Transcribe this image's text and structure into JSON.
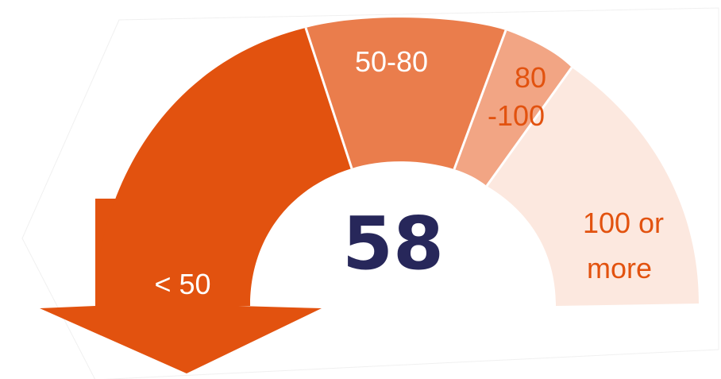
{
  "gauge": {
    "value": "58",
    "value_color": "#27275a",
    "segments": [
      {
        "id": "lt50",
        "label": "< 50",
        "color": "#e2520f",
        "label_color": "#ffffff"
      },
      {
        "id": "50-80",
        "label": "50-80",
        "color": "#ea7d4c",
        "label_color": "#ffffff"
      },
      {
        "id": "80-100",
        "label_lines": [
          "80",
          "-100"
        ],
        "color": "#f2a584",
        "label_color": "#e2520f"
      },
      {
        "id": "100plus",
        "label_lines": [
          "100 or",
          "more"
        ],
        "color": "#fce8df",
        "label_color": "#e2520f"
      }
    ],
    "arrow_color": "#e2520f"
  }
}
